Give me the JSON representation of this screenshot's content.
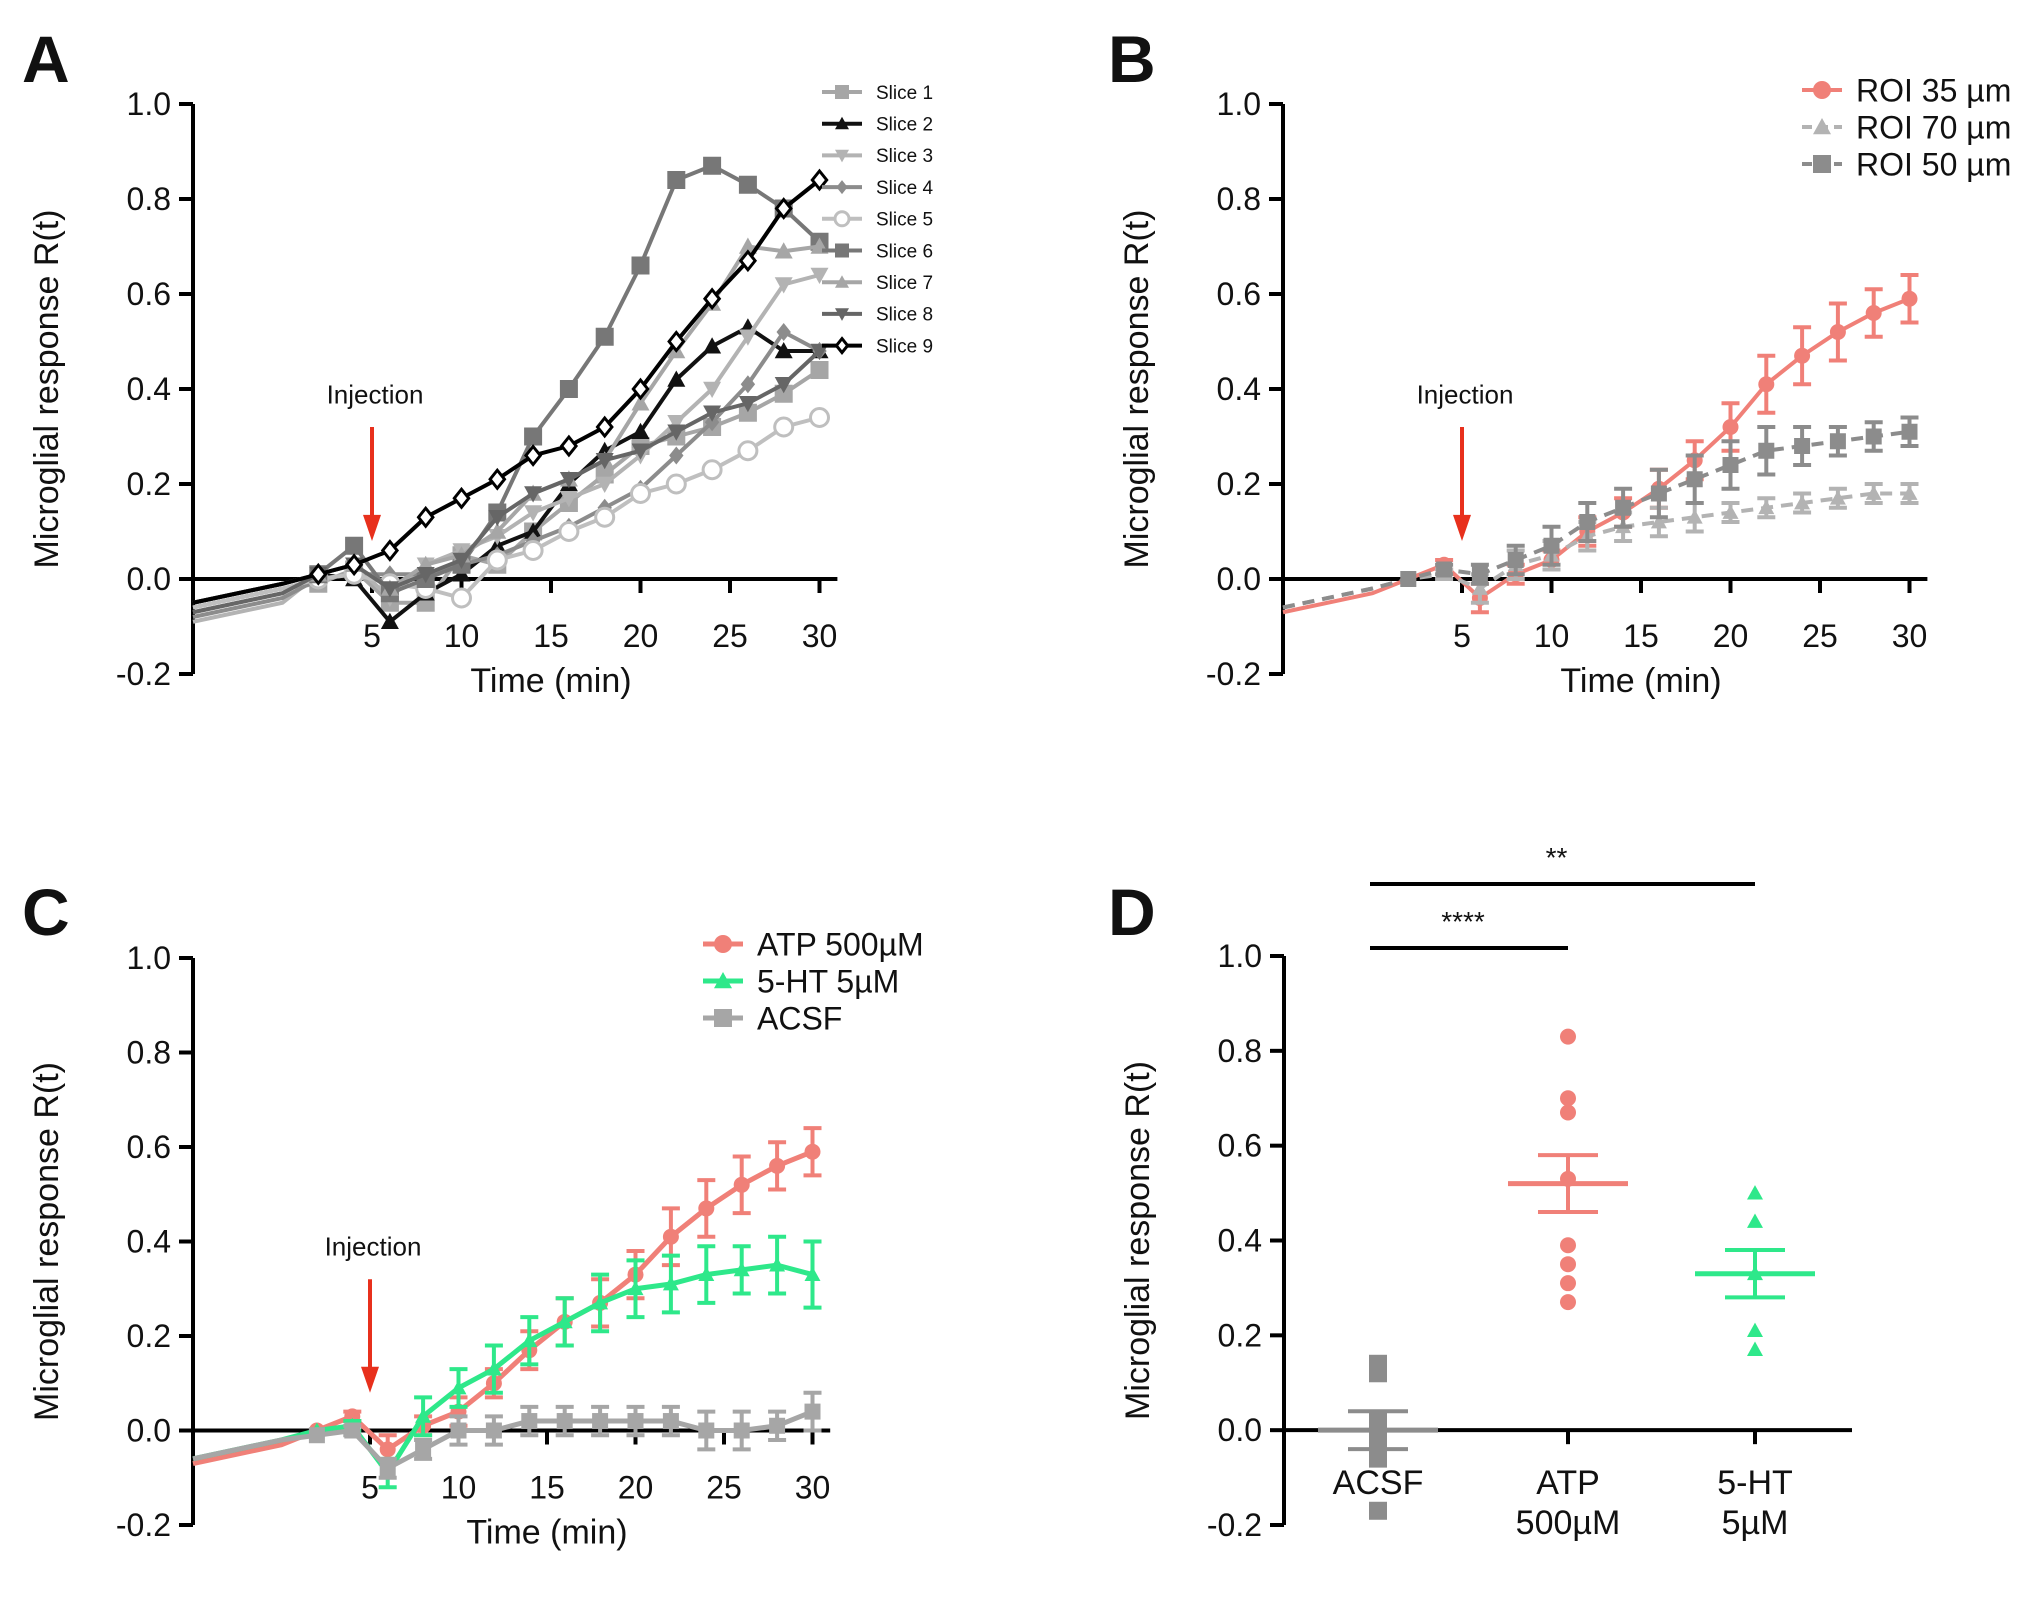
{
  "chart_data": [
    {
      "panel": "A",
      "type": "line",
      "ylabel": "Microglial response R(t)",
      "xlabel": "Time (min)",
      "xlim": [
        -5,
        31
      ],
      "ylim": [
        -0.2,
        1.0
      ],
      "xticks": [
        5,
        10,
        15,
        20,
        25,
        30
      ],
      "yticks": [
        -0.2,
        0.0,
        0.2,
        0.4,
        0.6,
        0.8,
        1.0
      ],
      "annotation": "Injection",
      "annotation_x": 5,
      "legend_position": "top-right",
      "x": [
        0,
        2,
        4,
        6,
        8,
        10,
        12,
        14,
        16,
        18,
        20,
        22,
        24,
        26,
        28,
        30
      ],
      "series": [
        {
          "name": "Slice 1",
          "color": "#a6a6a6",
          "marker": "square",
          "values": [
            -0.02,
            -0.01,
            0.02,
            -0.05,
            -0.05,
            0.05,
            0.03,
            0.1,
            0.16,
            0.22,
            0.28,
            0.3,
            0.32,
            0.35,
            0.39,
            0.44
          ]
        },
        {
          "name": "Slice 2",
          "color": "#111111",
          "marker": "triangle",
          "values": [
            -0.01,
            0.01,
            0.0,
            -0.09,
            -0.03,
            0.01,
            0.07,
            0.1,
            0.2,
            0.27,
            0.31,
            0.42,
            0.49,
            0.53,
            0.48,
            0.48
          ]
        },
        {
          "name": "Slice 3",
          "color": "#b3b3b3",
          "marker": "triangle-down",
          "values": [
            -0.05,
            0.01,
            0.03,
            -0.04,
            0.03,
            0.06,
            0.09,
            0.14,
            0.17,
            0.2,
            0.26,
            0.33,
            0.4,
            0.51,
            0.62,
            0.64
          ]
        },
        {
          "name": "Slice 4",
          "color": "#8c8c8c",
          "marker": "diamond",
          "values": [
            -0.04,
            0.0,
            0.01,
            0.01,
            0.01,
            0.03,
            0.05,
            0.08,
            0.11,
            0.15,
            0.19,
            0.26,
            0.33,
            0.41,
            0.52,
            0.48
          ]
        },
        {
          "name": "Slice 5",
          "color": "#bfbfbf",
          "marker": "circle-open",
          "values": [
            -0.02,
            0.0,
            0.01,
            -0.01,
            -0.02,
            -0.04,
            0.04,
            0.06,
            0.1,
            0.13,
            0.18,
            0.2,
            0.23,
            0.27,
            0.32,
            0.34
          ]
        },
        {
          "name": "Slice 6",
          "color": "#777777",
          "marker": "square",
          "values": [
            -0.01,
            0.01,
            0.07,
            -0.03,
            0.0,
            0.03,
            0.14,
            0.3,
            0.4,
            0.51,
            0.66,
            0.84,
            0.87,
            0.83,
            0.78,
            0.71
          ]
        },
        {
          "name": "Slice 7",
          "color": "#a6a6a6",
          "marker": "triangle",
          "values": [
            -0.03,
            0.01,
            0.03,
            -0.02,
            0.03,
            0.05,
            0.1,
            0.18,
            0.21,
            0.25,
            0.37,
            0.48,
            0.58,
            0.7,
            0.69,
            0.7
          ]
        },
        {
          "name": "Slice 8",
          "color": "#666666",
          "marker": "triangle-down",
          "values": [
            -0.03,
            0.01,
            0.03,
            -0.02,
            0.01,
            0.04,
            0.13,
            0.18,
            0.21,
            0.25,
            0.27,
            0.31,
            0.35,
            0.37,
            0.41,
            0.48
          ]
        },
        {
          "name": "Slice 9",
          "color": "#000000",
          "marker": "diamond-open",
          "values": [
            -0.01,
            0.01,
            0.03,
            0.06,
            0.13,
            0.17,
            0.21,
            0.26,
            0.28,
            0.32,
            0.4,
            0.5,
            0.59,
            0.67,
            0.78,
            0.84
          ]
        }
      ]
    },
    {
      "panel": "B",
      "type": "line",
      "ylabel": "Microglial response R(t)",
      "xlabel": "Time (min)",
      "xlim": [
        -5,
        31
      ],
      "ylim": [
        -0.2,
        1.0
      ],
      "xticks": [
        5,
        10,
        15,
        20,
        25,
        30
      ],
      "yticks": [
        -0.2,
        0.0,
        0.2,
        0.4,
        0.6,
        0.8,
        1.0
      ],
      "annotation": "Injection",
      "annotation_x": 5,
      "legend_position": "top-right",
      "x": [
        0,
        2,
        4,
        6,
        8,
        10,
        12,
        14,
        16,
        18,
        20,
        22,
        24,
        26,
        28,
        30
      ],
      "series": [
        {
          "name": "ROI 35 µm",
          "color": "#f08078",
          "marker": "circle",
          "dashed": false,
          "values": [
            -0.03,
            0.0,
            0.03,
            -0.04,
            0.01,
            0.04,
            0.1,
            0.14,
            0.19,
            0.25,
            0.32,
            0.41,
            0.47,
            0.52,
            0.56,
            0.59
          ],
          "errors": [
            0.01,
            0.01,
            0.01,
            0.03,
            0.02,
            0.02,
            0.03,
            0.03,
            0.04,
            0.04,
            0.05,
            0.06,
            0.06,
            0.06,
            0.05,
            0.05
          ]
        },
        {
          "name": "ROI 70 µm",
          "color": "#b3b3b3",
          "marker": "triangle",
          "dashed": true,
          "values": [
            -0.02,
            0.0,
            0.01,
            -0.02,
            0.03,
            0.05,
            0.09,
            0.11,
            0.12,
            0.13,
            0.14,
            0.15,
            0.16,
            0.17,
            0.18,
            0.18
          ],
          "errors": [
            0.01,
            0.01,
            0.01,
            0.03,
            0.03,
            0.03,
            0.03,
            0.03,
            0.03,
            0.03,
            0.02,
            0.02,
            0.02,
            0.02,
            0.02,
            0.02
          ]
        },
        {
          "name": "ROI 50 µm",
          "color": "#8c8c8c",
          "marker": "square",
          "dashed": true,
          "values": [
            -0.02,
            0.0,
            0.02,
            0.01,
            0.04,
            0.07,
            0.12,
            0.15,
            0.18,
            0.21,
            0.24,
            0.27,
            0.28,
            0.29,
            0.3,
            0.31
          ],
          "errors": [
            0.01,
            0.01,
            0.01,
            0.02,
            0.03,
            0.04,
            0.04,
            0.04,
            0.05,
            0.05,
            0.05,
            0.05,
            0.04,
            0.03,
            0.03,
            0.03
          ]
        }
      ]
    },
    {
      "panel": "C",
      "type": "line",
      "ylabel": "Microglial response R(t)",
      "xlabel": "Time (min)",
      "xlim": [
        -5,
        31
      ],
      "ylim": [
        -0.2,
        1.0
      ],
      "xticks": [
        5,
        10,
        15,
        20,
        25,
        30
      ],
      "yticks": [
        -0.2,
        0.0,
        0.2,
        0.4,
        0.6,
        0.8,
        1.0
      ],
      "annotation": "Injection",
      "annotation_x": 5,
      "legend_position": "top-right",
      "x": [
        0,
        2,
        4,
        6,
        8,
        10,
        12,
        14,
        16,
        18,
        20,
        22,
        24,
        26,
        28,
        30
      ],
      "series": [
        {
          "name": "ATP 500µM",
          "color": "#f08078",
          "marker": "circle",
          "values": [
            -0.03,
            0.0,
            0.03,
            -0.04,
            0.01,
            0.04,
            0.1,
            0.17,
            0.23,
            0.27,
            0.33,
            0.41,
            0.47,
            0.52,
            0.56,
            0.59
          ],
          "errors": [
            0.01,
            0.01,
            0.01,
            0.03,
            0.02,
            0.03,
            0.03,
            0.04,
            0.05,
            0.05,
            0.05,
            0.06,
            0.06,
            0.06,
            0.05,
            0.05
          ]
        },
        {
          "name": "5-HT 5µM",
          "color": "#2ee88a",
          "marker": "triangle",
          "values": [
            -0.02,
            0.0,
            0.01,
            -0.09,
            0.03,
            0.09,
            0.13,
            0.19,
            0.23,
            0.27,
            0.3,
            0.31,
            0.33,
            0.34,
            0.35,
            0.33
          ],
          "errors": [
            0.01,
            0.01,
            0.01,
            0.03,
            0.04,
            0.04,
            0.05,
            0.05,
            0.05,
            0.06,
            0.06,
            0.06,
            0.06,
            0.05,
            0.06,
            0.07
          ]
        },
        {
          "name": "ACSF",
          "color": "#a6a6a6",
          "marker": "square",
          "values": [
            -0.02,
            -0.01,
            0.0,
            -0.08,
            -0.04,
            0.0,
            0.0,
            0.02,
            0.02,
            0.02,
            0.02,
            0.02,
            0.0,
            0.0,
            0.01,
            0.04
          ],
          "errors": [
            0.01,
            0.01,
            0.01,
            0.02,
            0.02,
            0.03,
            0.03,
            0.03,
            0.03,
            0.03,
            0.03,
            0.03,
            0.04,
            0.04,
            0.03,
            0.04
          ]
        }
      ]
    },
    {
      "panel": "D",
      "type": "scatter",
      "ylabel": "Microglial response R(t)",
      "ylim": [
        -0.2,
        1.0
      ],
      "yticks": [
        -0.2,
        0.0,
        0.2,
        0.4,
        0.6,
        0.8,
        1.0
      ],
      "categories": [
        {
          "name": "ACSF",
          "label_lines": [
            "ACSF"
          ],
          "color": "#8c8c8c",
          "marker": "square",
          "points": [
            0.14,
            0.12,
            0.02,
            -0.02,
            -0.06,
            -0.17
          ],
          "mean": 0.0,
          "sem": 0.04
        },
        {
          "name": "ATP 500µM",
          "label_lines": [
            "ATP",
            "500µM"
          ],
          "color": "#f08078",
          "marker": "circle",
          "points": [
            0.83,
            0.7,
            0.67,
            0.53,
            0.39,
            0.35,
            0.31,
            0.27
          ],
          "mean": 0.52,
          "sem": 0.06
        },
        {
          "name": "5-HT 5µM",
          "label_lines": [
            "5-HT",
            "5µM"
          ],
          "color": "#2ee88a",
          "marker": "triangle",
          "points": [
            0.5,
            0.44,
            0.33,
            0.21,
            0.17
          ],
          "mean": 0.33,
          "sem": 0.05
        }
      ],
      "significance": [
        {
          "from": 0,
          "to": 1,
          "label": "****"
        },
        {
          "from": 0,
          "to": 2,
          "label": "**"
        }
      ]
    }
  ],
  "panel_labels": [
    "A",
    "B",
    "C",
    "D"
  ]
}
